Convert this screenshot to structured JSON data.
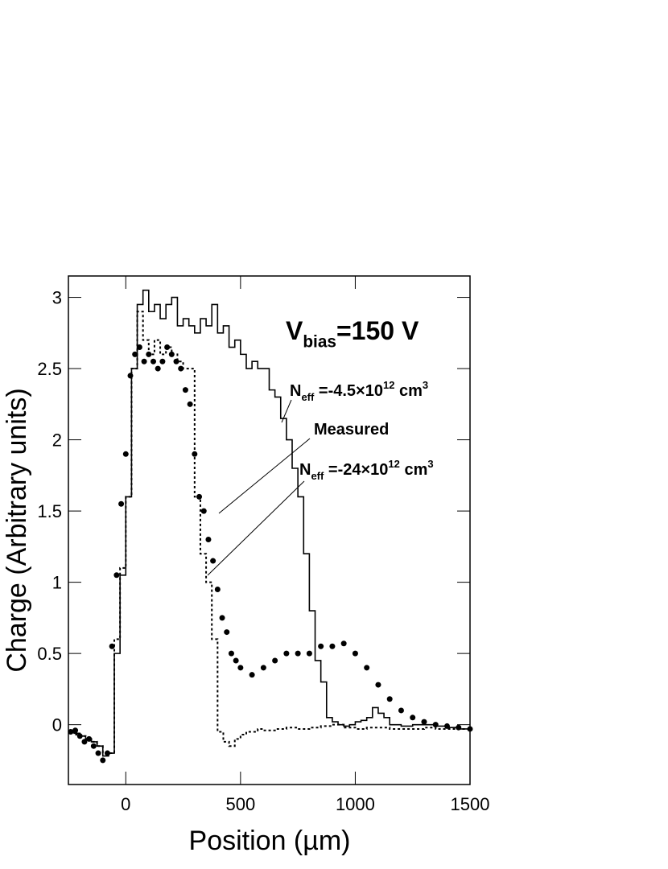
{
  "chart_data": {
    "type": "line",
    "x_label": "Position (µm)",
    "y_label": "Charge (Arbitrary units)",
    "xlim": [
      -250,
      1500
    ],
    "ylim": [
      -0.42,
      3.15
    ],
    "xticks": [
      0,
      500,
      1000,
      1500
    ],
    "yticks": [
      0,
      0.5,
      1,
      1.5,
      2,
      2.5,
      3
    ],
    "annotations": [
      [
        {
          "text": "V"
        },
        {
          "sub": "bias"
        },
        {
          "text": "=150 V"
        }
      ],
      [
        {
          "text": "N"
        },
        {
          "sub": "eff"
        },
        {
          "text": " =-4.5×10"
        },
        {
          "sup": "12"
        },
        {
          "text": " cm"
        },
        {
          "sup": "3"
        }
      ],
      [
        {
          "text": "Measured"
        }
      ],
      [
        {
          "text": "N"
        },
        {
          "sub": "eff"
        },
        {
          "text": " =-24×10"
        },
        {
          "sup": "12"
        },
        {
          "text": " cm"
        },
        {
          "sup": "3"
        }
      ]
    ],
    "series": [
      {
        "style": "step-solid",
        "color": "#000000",
        "x": [
          -250,
          -225,
          -200,
          -175,
          -150,
          -125,
          -100,
          -75,
          -50,
          -25,
          0,
          25,
          50,
          75,
          100,
          125,
          150,
          175,
          200,
          225,
          250,
          275,
          300,
          325,
          350,
          375,
          400,
          425,
          450,
          475,
          500,
          525,
          550,
          575,
          600,
          625,
          650,
          675,
          700,
          725,
          750,
          775,
          800,
          825,
          850,
          875,
          900,
          925,
          950,
          975,
          1000,
          1025,
          1050,
          1075,
          1100,
          1125,
          1150,
          1175,
          1200,
          1250,
          1300,
          1350,
          1400,
          1450,
          1500
        ],
        "values": [
          -0.05,
          -0.06,
          -0.08,
          -0.1,
          -0.12,
          -0.15,
          -0.22,
          -0.2,
          0.5,
          1.05,
          1.6,
          2.5,
          2.95,
          3.05,
          2.9,
          2.95,
          2.85,
          2.95,
          3.0,
          2.8,
          2.85,
          2.8,
          2.75,
          2.85,
          2.8,
          2.95,
          2.75,
          2.8,
          2.65,
          2.7,
          2.6,
          2.5,
          2.55,
          2.5,
          2.5,
          2.35,
          2.3,
          2.15,
          2.0,
          1.8,
          1.6,
          1.2,
          0.8,
          0.45,
          0.3,
          0.05,
          0.02,
          0.0,
          -0.01,
          0.0,
          0.02,
          0.03,
          0.05,
          0.12,
          0.08,
          0.05,
          0.0,
          0.0,
          -0.01,
          0.0,
          0.0,
          -0.01,
          -0.02,
          -0.03,
          -0.03
        ]
      },
      {
        "style": "step-dotted",
        "color": "#000000",
        "x": [
          -250,
          -225,
          -200,
          -175,
          -150,
          -125,
          -100,
          -75,
          -50,
          -25,
          0,
          25,
          50,
          75,
          100,
          125,
          150,
          175,
          200,
          225,
          250,
          275,
          300,
          325,
          350,
          375,
          400,
          425,
          450,
          475,
          500,
          525,
          550,
          575,
          600,
          650,
          700,
          750,
          800,
          850,
          900,
          950,
          1000,
          1050,
          1100,
          1150,
          1200,
          1250,
          1300,
          1350,
          1400,
          1450,
          1500
        ],
        "values": [
          -0.05,
          -0.07,
          -0.08,
          -0.1,
          -0.12,
          -0.15,
          -0.2,
          -0.2,
          0.6,
          1.1,
          1.6,
          2.5,
          2.9,
          2.7,
          2.6,
          2.7,
          2.6,
          2.65,
          2.6,
          2.55,
          2.5,
          2.5,
          1.6,
          1.2,
          1.0,
          0.6,
          -0.05,
          -0.12,
          -0.15,
          -0.1,
          -0.07,
          -0.05,
          -0.05,
          -0.03,
          -0.04,
          -0.03,
          -0.02,
          -0.03,
          -0.02,
          -0.01,
          0.0,
          -0.02,
          -0.03,
          -0.02,
          -0.02,
          -0.03,
          -0.03,
          -0.03,
          -0.02,
          -0.03,
          -0.03,
          -0.03,
          -0.03
        ]
      },
      {
        "style": "markers",
        "color": "#000000",
        "x": [
          -240,
          -220,
          -200,
          -180,
          -160,
          -140,
          -120,
          -100,
          -80,
          -60,
          -40,
          -20,
          0,
          20,
          40,
          60,
          80,
          100,
          120,
          140,
          160,
          180,
          200,
          220,
          240,
          260,
          280,
          300,
          320,
          340,
          360,
          380,
          400,
          420,
          440,
          460,
          480,
          500,
          550,
          600,
          650,
          700,
          750,
          800,
          850,
          900,
          950,
          1000,
          1050,
          1100,
          1150,
          1200,
          1250,
          1300,
          1350,
          1400,
          1450,
          1500
        ],
        "values": [
          -0.05,
          -0.04,
          -0.08,
          -0.12,
          -0.1,
          -0.15,
          -0.2,
          -0.25,
          -0.2,
          0.55,
          1.05,
          1.55,
          1.9,
          2.45,
          2.6,
          2.65,
          2.55,
          2.6,
          2.55,
          2.5,
          2.55,
          2.65,
          2.6,
          2.55,
          2.5,
          2.35,
          2.25,
          1.9,
          1.6,
          1.5,
          1.3,
          1.15,
          0.95,
          0.75,
          0.65,
          0.5,
          0.45,
          0.4,
          0.35,
          0.4,
          0.45,
          0.5,
          0.5,
          0.5,
          0.55,
          0.55,
          0.57,
          0.5,
          0.4,
          0.28,
          0.18,
          0.1,
          0.05,
          0.02,
          0.0,
          -0.01,
          -0.02,
          -0.03
        ]
      }
    ]
  }
}
